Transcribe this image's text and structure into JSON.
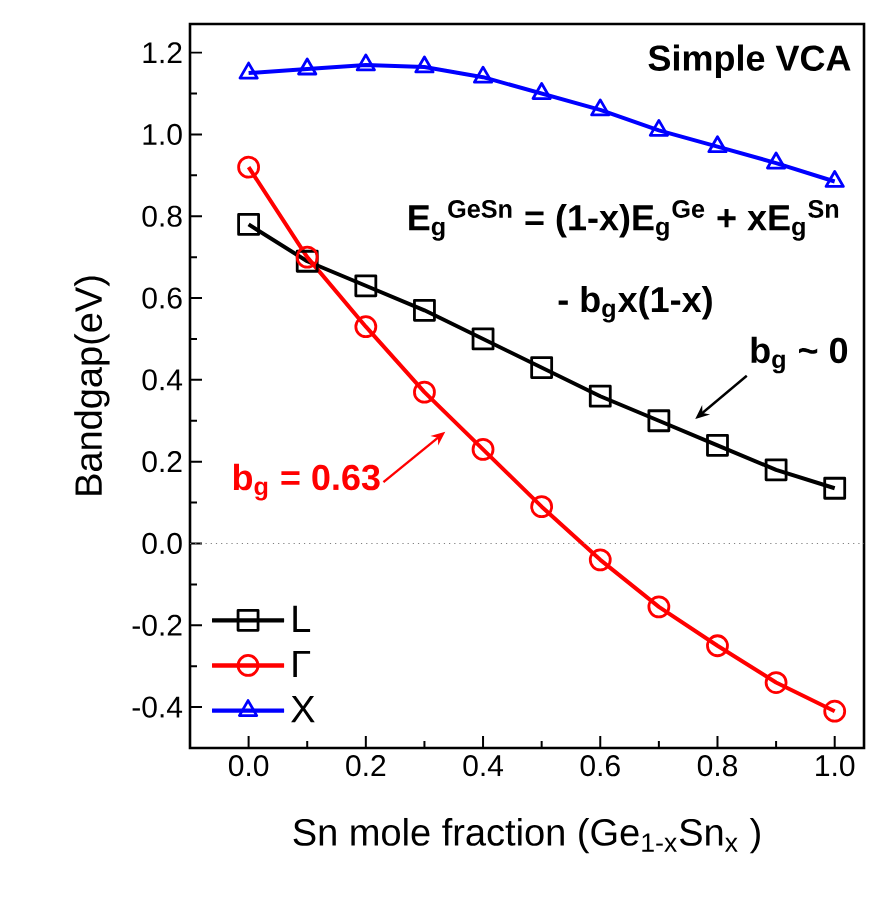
{
  "chart_data": {
    "type": "line",
    "xlabel": "Sn mole fraction  (Ge$_{1-x}$Sn$_{x}$ )",
    "ylabel": "Bandgap(eV)",
    "x": [
      0.0,
      0.1,
      0.2,
      0.3,
      0.4,
      0.5,
      0.6,
      0.7,
      0.8,
      0.9,
      1.0
    ],
    "series": [
      {
        "name": "L",
        "color": "#000000",
        "marker": "square",
        "values": [
          0.78,
          0.69,
          0.63,
          0.57,
          0.5,
          0.43,
          0.36,
          0.3,
          0.24,
          0.18,
          0.135
        ]
      },
      {
        "name": "Γ",
        "color": "#ff0000",
        "marker": "circle",
        "values": [
          0.92,
          0.7,
          0.53,
          0.37,
          0.23,
          0.09,
          -0.04,
          -0.155,
          -0.25,
          -0.34,
          -0.41
        ]
      },
      {
        "name": "X",
        "color": "#0000ff",
        "marker": "triangle",
        "values": [
          1.15,
          1.16,
          1.17,
          1.165,
          1.14,
          1.1,
          1.06,
          1.01,
          0.97,
          0.93,
          0.885
        ]
      }
    ],
    "xlim": [
      -0.1,
      1.05
    ],
    "ylim": [
      -0.5,
      1.27
    ],
    "xticks": [
      {
        "value": 0.0,
        "label": "0.0"
      },
      {
        "value": 0.2,
        "label": "0.2"
      },
      {
        "value": 0.4,
        "label": "0.4"
      },
      {
        "value": 0.6,
        "label": "0.6"
      },
      {
        "value": 0.8,
        "label": "0.8"
      },
      {
        "value": 1.0,
        "label": "1.0"
      }
    ],
    "yticks": [
      {
        "value": -0.4,
        "label": "-0.4"
      },
      {
        "value": -0.2,
        "label": "-0.2"
      },
      {
        "value": 0.0,
        "label": "0.0"
      },
      {
        "value": 0.2,
        "label": "0.2"
      },
      {
        "value": 0.4,
        "label": "0.4"
      },
      {
        "value": 0.6,
        "label": "0.6"
      },
      {
        "value": 0.8,
        "label": "0.8"
      },
      {
        "value": 1.0,
        "label": "1.0"
      },
      {
        "value": 1.2,
        "label": "1.2"
      }
    ],
    "ref_lines": [
      {
        "axis": "y",
        "value": 0.0,
        "color": "#808080",
        "line_style": "dotted"
      }
    ],
    "annotations": [
      "Simple VCA",
      "E$_{g}$$^{GeSn}$ = (1-x)E$_{g}$$^{Ge}$ + xE$_{g}$$^{Sn}$",
      "- b$_{g}$x(1-x)",
      {
        "text": "b$_{g}$ ~ 0",
        "x": 0.75,
        "y": 0.29
      },
      {
        "text": "b$_{g}$ = 0.63",
        "x": 0.35,
        "y": 0.29
      }
    ],
    "legend": "bottom left",
    "grid": false,
    "line_style": "solid"
  }
}
